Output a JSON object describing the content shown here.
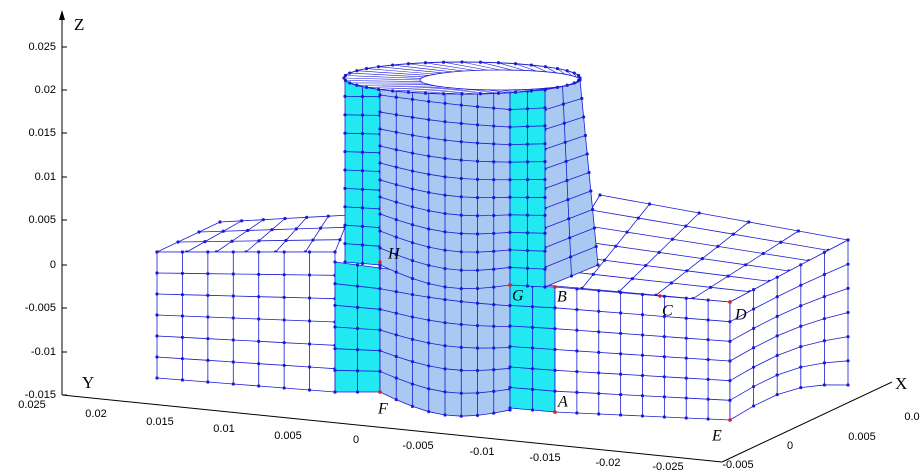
{
  "axes": {
    "z": {
      "label": "Z",
      "ticks": [
        "0.025",
        "0.02",
        "0.015",
        "0.01",
        "0.005",
        "0",
        "-0.005",
        "-0.01",
        "-0.015"
      ]
    },
    "y": {
      "label": "Y",
      "ticks": [
        "0.025",
        "0.02",
        "0.015",
        "0.01",
        "0.005",
        "0",
        "-0.005",
        "-0.01",
        "-0.015",
        "-0.02",
        "-0.025"
      ]
    },
    "x": {
      "label": "X",
      "ticks": [
        "-0.005",
        "0",
        "0.005",
        "0.0"
      ]
    }
  },
  "points": [
    "H",
    "G",
    "B",
    "C",
    "D",
    "A",
    "F",
    "E"
  ]
}
